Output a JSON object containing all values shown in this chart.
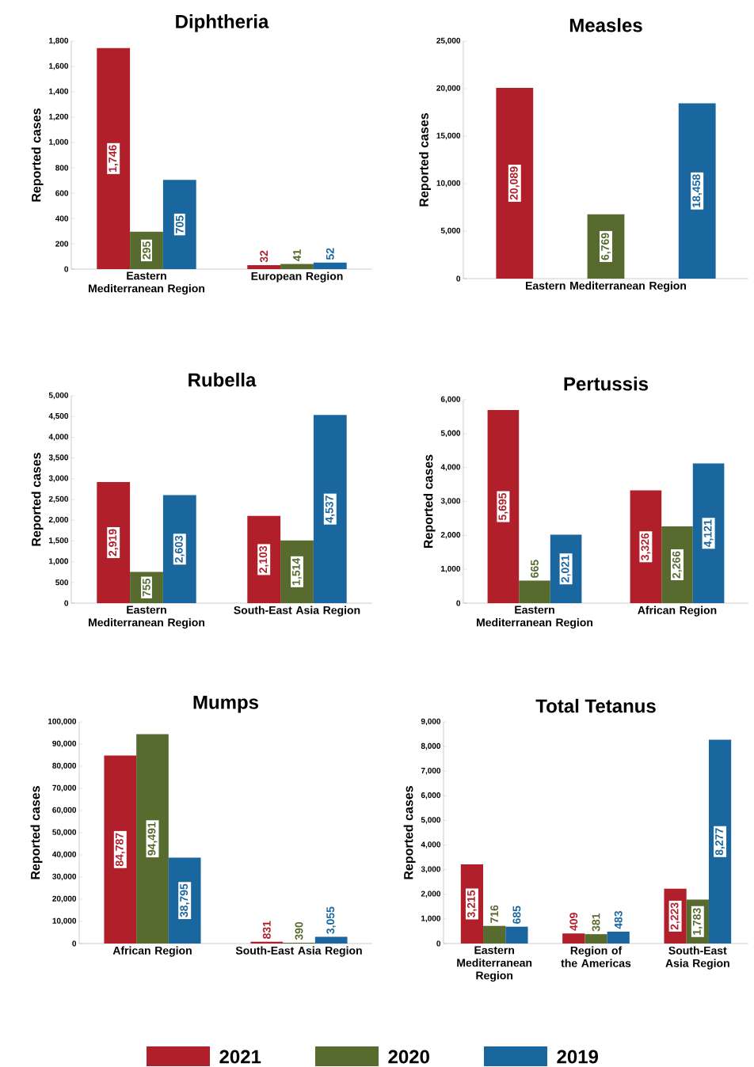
{
  "chart_data": [
    {
      "type": "bar",
      "title": "Diphtheria",
      "ylabel": "Reported cases",
      "categories": [
        "Eastern Mediterranean Region",
        "European Region"
      ],
      "series": [
        {
          "color": "#b01f2a",
          "values": [
            1746,
            32
          ],
          "value_labels": [
            "1,746",
            "32"
          ]
        },
        {
          "color": "#566b2d",
          "values": [
            295,
            41
          ],
          "value_labels": [
            "295",
            "41"
          ]
        },
        {
          "color": "#1a67a0",
          "values": [
            705,
            52
          ],
          "value_labels": [
            "705",
            "52"
          ]
        }
      ],
      "ylim": [
        0,
        1800
      ],
      "yticks": [
        0,
        200,
        400,
        600,
        800,
        {
          "value": 1000,
          "label": "1,000"
        },
        {
          "value": 1200,
          "label": "1,200"
        },
        {
          "value": 1400,
          "label": "1,400"
        },
        {
          "value": 1600,
          "label": "1,600"
        },
        {
          "value": 1800,
          "label": "1,800"
        }
      ]
    },
    {
      "type": "bar",
      "title": "Measles",
      "ylabel": "Reported cases",
      "categories": [
        "Eastern Mediterranean Region"
      ],
      "series": [
        {
          "color": "#b01f2a",
          "values": [
            20089
          ],
          "value_labels": [
            "20,089"
          ]
        },
        {
          "color": "#566b2d",
          "values": [
            6769
          ],
          "value_labels": [
            "6,769"
          ]
        },
        {
          "color": "#1a67a0",
          "values": [
            18458
          ],
          "value_labels": [
            "18,458"
          ]
        }
      ],
      "ylim": [
        0,
        25000
      ],
      "yticks": [
        0,
        {
          "value": 5000,
          "label": "5,000"
        },
        {
          "value": 10000,
          "label": "10,000"
        },
        {
          "value": 15000,
          "label": "15,000"
        },
        {
          "value": 20000,
          "label": "20,000"
        },
        {
          "value": 25000,
          "label": "25,000"
        }
      ]
    },
    {
      "type": "bar",
      "title": "Rubella",
      "ylabel": "Reported cases",
      "categories": [
        "Eastern Mediterranean Region",
        "South-East Asia Region"
      ],
      "series": [
        {
          "color": "#b01f2a",
          "values": [
            2919,
            2103
          ],
          "value_labels": [
            "2,919",
            "2,103"
          ]
        },
        {
          "color": "#566b2d",
          "values": [
            755,
            1514
          ],
          "value_labels": [
            "755",
            "1,514"
          ]
        },
        {
          "color": "#1a67a0",
          "values": [
            2603,
            4537
          ],
          "value_labels": [
            "2,603",
            "4,537"
          ]
        }
      ],
      "ylim": [
        0,
        5000
      ],
      "yticks": [
        0,
        500,
        {
          "value": 1000,
          "label": "1,000"
        },
        {
          "value": 1500,
          "label": "1,500"
        },
        {
          "value": 2000,
          "label": "2,000"
        },
        {
          "value": 2500,
          "label": "2,500"
        },
        {
          "value": 3000,
          "label": "3,000"
        },
        {
          "value": 3500,
          "label": "3,500"
        },
        {
          "value": 4000,
          "label": "4,000"
        },
        {
          "value": 4500,
          "label": "4,500"
        },
        {
          "value": 5000,
          "label": "5,000"
        }
      ]
    },
    {
      "type": "bar",
      "title": "Pertussis",
      "ylabel": "Reported cases",
      "categories": [
        "Eastern Mediterranean Region",
        "African Region"
      ],
      "series": [
        {
          "color": "#b01f2a",
          "values": [
            5695,
            3326
          ],
          "value_labels": [
            "5,695",
            "3,326"
          ]
        },
        {
          "color": "#566b2d",
          "values": [
            665,
            2266
          ],
          "value_labels": [
            "665",
            "2,266"
          ]
        },
        {
          "color": "#1a67a0",
          "values": [
            2021,
            4121
          ],
          "value_labels": [
            "2,021",
            "4,121"
          ]
        }
      ],
      "ylim": [
        0,
        6000
      ],
      "yticks": [
        0,
        {
          "value": 1000,
          "label": "1,000"
        },
        {
          "value": 2000,
          "label": "2,000"
        },
        {
          "value": 3000,
          "label": "3,000"
        },
        {
          "value": 4000,
          "label": "4,000"
        },
        {
          "value": 5000,
          "label": "5,000"
        },
        {
          "value": 6000,
          "label": "6,000"
        }
      ]
    },
    {
      "type": "bar",
      "title": "Mumps",
      "ylabel": "Reported cases",
      "categories": [
        "African Region",
        "South-East Asia Region"
      ],
      "series": [
        {
          "color": "#b01f2a",
          "values": [
            84787,
            831
          ],
          "value_labels": [
            "84,787",
            "831"
          ]
        },
        {
          "color": "#566b2d",
          "values": [
            94491,
            390
          ],
          "value_labels": [
            "94,491",
            "390"
          ]
        },
        {
          "color": "#1a67a0",
          "values": [
            38795,
            3055
          ],
          "value_labels": [
            "38,795",
            "3,055"
          ]
        }
      ],
      "ylim": [
        0,
        100000
      ],
      "yticks": [
        0,
        {
          "value": 10000,
          "label": "10,000"
        },
        {
          "value": 20000,
          "label": "20,000"
        },
        {
          "value": 30000,
          "label": "30,000"
        },
        {
          "value": 40000,
          "label": "40,000"
        },
        {
          "value": 50000,
          "label": "50,000"
        },
        {
          "value": 60000,
          "label": "60,000"
        },
        {
          "value": 70000,
          "label": "70,000"
        },
        {
          "value": 80000,
          "label": "80,000"
        },
        {
          "value": 90000,
          "label": "90,000"
        },
        {
          "value": 100000,
          "label": "100,000"
        }
      ]
    },
    {
      "type": "bar",
      "title": "Total Tetanus",
      "ylabel": "Reported cases",
      "categories": [
        "Eastern Mediterranean Region",
        "Region of the Americas",
        "South-East Asia Region"
      ],
      "series": [
        {
          "name": "2021",
          "color": "#b01f2a",
          "values": [
            3215,
            409,
            2223
          ],
          "value_labels": [
            "3,215",
            "409",
            "2,223"
          ]
        },
        {
          "name": "2020",
          "color": "#566b2d",
          "values": [
            716,
            381,
            1783
          ],
          "value_labels": [
            "716",
            "381",
            "1,783"
          ]
        },
        {
          "name": "2019",
          "color": "#1a67a0",
          "values": [
            685,
            483,
            8277
          ],
          "value_labels": [
            "685",
            "483",
            "8,277"
          ]
        }
      ],
      "ylim": [
        0,
        9000
      ],
      "yticks": [
        0,
        {
          "value": 1000,
          "label": "1,000"
        },
        {
          "value": 2000,
          "label": "2,000"
        },
        {
          "value": 3000,
          "label": "3,000"
        },
        {
          "value": 4000,
          "label": "4,000"
        },
        {
          "value": 5000,
          "label": "5,000"
        },
        {
          "value": 6000,
          "label": "6,000"
        },
        {
          "value": 7000,
          "label": "7,000"
        },
        {
          "value": 8000,
          "label": "8,000"
        },
        {
          "value": 9000,
          "label": "9,000"
        }
      ],
      "legend": "bottom"
    }
  ]
}
